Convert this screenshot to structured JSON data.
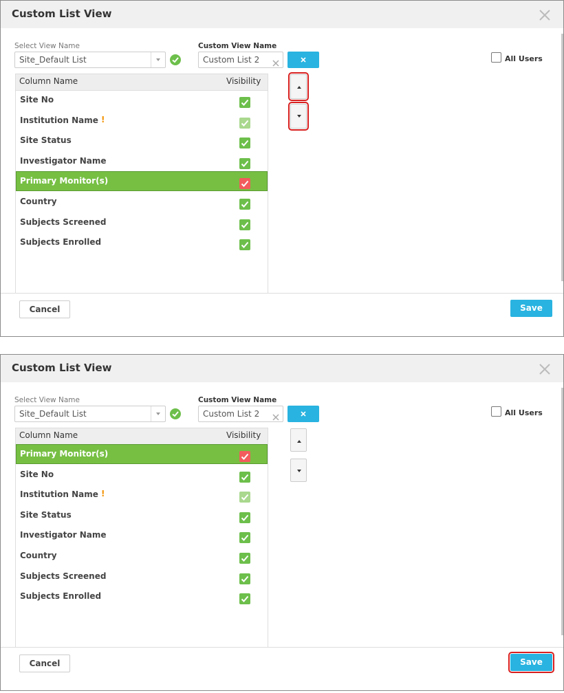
{
  "panels": [
    {
      "title": "Custom List View",
      "select_view_label": "Select View Name",
      "select_view_value": "Site_Default List",
      "custom_view_label": "Custom View Name",
      "custom_view_value": "Custom List 2",
      "all_users": "All Users",
      "table": {
        "headers": [
          "Column Name",
          "Visibility"
        ],
        "selected_row": 4,
        "rows": [
          {
            "name": "Site No"
          },
          {
            "name": "Institution Name",
            "flag": "!"
          },
          {
            "name": "Site Status"
          },
          {
            "name": "Investigator Name"
          },
          {
            "name": "Primary Monitor(s)"
          },
          {
            "name": "Country"
          },
          {
            "name": "Subjects Screened"
          },
          {
            "name": "Subjects Enrolled"
          }
        ]
      },
      "cancel": "Cancel",
      "save": "Save",
      "highlight": [
        "move_up",
        "move_down"
      ]
    },
    {
      "title": "Custom List View",
      "select_view_label": "Select View Name",
      "select_view_value": "Site_Default List",
      "custom_view_label": "Custom View Name",
      "custom_view_value": "Custom List 2",
      "all_users": "All Users",
      "table": {
        "headers": [
          "Column Name",
          "Visibility"
        ],
        "selected_row": 0,
        "rows": [
          {
            "name": "Primary Monitor(s)"
          },
          {
            "name": "Site No"
          },
          {
            "name": "Institution Name",
            "flag": "!"
          },
          {
            "name": "Site Status"
          },
          {
            "name": "Investigator Name"
          },
          {
            "name": "Country"
          },
          {
            "name": "Subjects Screened"
          },
          {
            "name": "Subjects Enrolled"
          }
        ]
      },
      "cancel": "Cancel",
      "save": "Save",
      "highlight": [
        "save"
      ]
    }
  ]
}
